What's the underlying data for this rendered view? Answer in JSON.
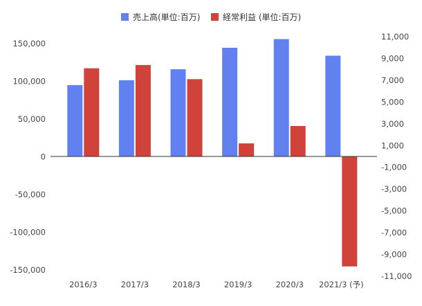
{
  "chart_data": {
    "type": "bar",
    "title": "",
    "xlabel": "",
    "ylabel": "",
    "categories": [
      "2016/3",
      "2017/3",
      "2018/3",
      "2019/3",
      "2020/3",
      "2021/3 (予)"
    ],
    "series": [
      {
        "name": "売上高(単位:百万)",
        "axis": "left",
        "color": "#6281f0",
        "values": [
          95000,
          101500,
          116000,
          144500,
          156000,
          134000
        ]
      },
      {
        "name": "経常利益 (単位:百万)",
        "axis": "right",
        "color": "#d0433a",
        "values": [
          8100,
          8400,
          7100,
          1200,
          2800,
          -10100
        ]
      }
    ],
    "y_left": {
      "min": -150000,
      "max": 150000,
      "ticks": [
        150000,
        100000,
        50000,
        0,
        -50000,
        -100000,
        -150000
      ],
      "tick_labels": [
        "150,000",
        "100,000",
        "50,000",
        "0",
        "-50,000",
        "-100,000",
        "-150,000"
      ]
    },
    "y_right": {
      "min": -11000,
      "max": 11000,
      "ticks": [
        11000,
        9000,
        7000,
        5000,
        3000,
        1000,
        -1000,
        -3000,
        -5000,
        -7000,
        -9000,
        -11000
      ],
      "tick_labels": [
        "11,000",
        "9,000",
        "7,000",
        "5,000",
        "3,000",
        "1,000",
        "-1,000",
        "-3,000",
        "-5,000",
        "-7,000",
        "-9,000",
        "-11,000"
      ]
    },
    "grid": false,
    "legend": "top-center"
  }
}
